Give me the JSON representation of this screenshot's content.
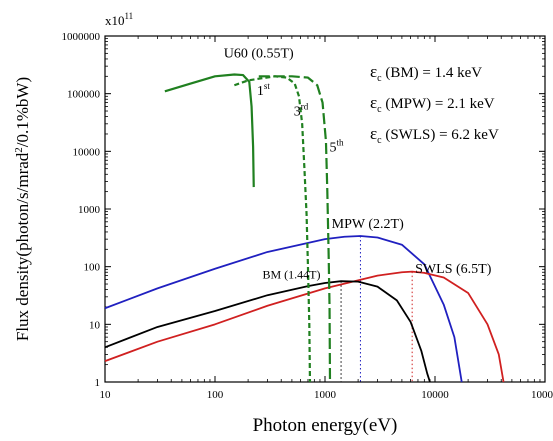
{
  "chart_data": {
    "type": "line",
    "xlabel": "Photon energy(eV)",
    "ylabel_parts": {
      "pre": "Flux density(photon/s/mrad",
      "sup": "2",
      "post": "/0.1%bW)"
    },
    "y_multiplier": {
      "base": "x10",
      "exp": "11"
    },
    "x_scale": "log",
    "y_scale": "log",
    "xlim": [
      10,
      100000
    ],
    "ylim": [
      1,
      1000000
    ],
    "x_ticks": [
      10,
      100,
      1000,
      10000,
      100000
    ],
    "x_tick_labels": [
      "10",
      "100",
      "1000",
      "10000",
      "100000"
    ],
    "y_ticks": [
      1,
      10,
      100,
      1000,
      10000,
      100000,
      1000000
    ],
    "y_tick_labels": [
      "1",
      "10",
      "100",
      "1000",
      "10000",
      "100000",
      "1000000"
    ],
    "critical_energies": [
      {
        "sym": "ε",
        "sub": "c",
        "text": " (BM) = 1.4 keV"
      },
      {
        "sym": "ε",
        "sub": "c",
        "text": " (MPW) = 2.1 keV"
      },
      {
        "sym": "ε",
        "sub": "c",
        "text": " (SWLS) = 6.2 keV"
      }
    ],
    "series": [
      {
        "name": "MPW (2.2T)",
        "color": "#2020c0",
        "dash": "solid",
        "points": [
          [
            10,
            19
          ],
          [
            30,
            42
          ],
          [
            100,
            92
          ],
          [
            300,
            180
          ],
          [
            1000,
            300
          ],
          [
            1500,
            330
          ],
          [
            2100,
            340
          ],
          [
            3000,
            320
          ],
          [
            5000,
            240
          ],
          [
            8000,
            110
          ],
          [
            12000,
            22
          ],
          [
            15000,
            6
          ],
          [
            17500,
            1
          ]
        ]
      },
      {
        "name": "SWLS (6.5T)",
        "color": "#d02020",
        "dash": "solid",
        "points": [
          [
            10,
            2.3
          ],
          [
            30,
            5
          ],
          [
            100,
            10
          ],
          [
            300,
            21
          ],
          [
            1000,
            42
          ],
          [
            3000,
            70
          ],
          [
            5000,
            80
          ],
          [
            6200,
            82
          ],
          [
            8000,
            78
          ],
          [
            12000,
            65
          ],
          [
            20000,
            35
          ],
          [
            30000,
            10
          ],
          [
            38000,
            3
          ],
          [
            42000,
            1
          ]
        ]
      },
      {
        "name": "BM (1.44T)",
        "color": "#000000",
        "dash": "solid",
        "points": [
          [
            10,
            4
          ],
          [
            30,
            9
          ],
          [
            100,
            17
          ],
          [
            300,
            32
          ],
          [
            700,
            46
          ],
          [
            1000,
            52
          ],
          [
            1400,
            56
          ],
          [
            2000,
            55
          ],
          [
            3000,
            45
          ],
          [
            4500,
            26
          ],
          [
            6000,
            11
          ],
          [
            7500,
            3.5
          ],
          [
            8500,
            1.4
          ],
          [
            9000,
            1
          ]
        ]
      },
      {
        "name": "1st",
        "color": "#208020",
        "dash": "solid",
        "points": [
          [
            35,
            110000
          ],
          [
            60,
            150000
          ],
          [
            100,
            200000
          ],
          [
            150,
            215000
          ],
          [
            180,
            210000
          ],
          [
            205,
            160000
          ],
          [
            215,
            60000
          ],
          [
            222,
            12000
          ],
          [
            225,
            2400
          ]
        ]
      },
      {
        "name": "3rd",
        "color": "#208020",
        "dash": "short",
        "points": [
          [
            150,
            140000
          ],
          [
            200,
            170000
          ],
          [
            350,
            200000
          ],
          [
            450,
            190000
          ],
          [
            530,
            150000
          ],
          [
            580,
            90000
          ],
          [
            620,
            30000
          ],
          [
            650,
            5000
          ],
          [
            680,
            800
          ],
          [
            700,
            100
          ],
          [
            720,
            10
          ],
          [
            730,
            1
          ]
        ]
      },
      {
        "name": "5th",
        "color": "#208020",
        "dash": "long",
        "points": [
          [
            250,
            200000
          ],
          [
            500,
            200000
          ],
          [
            700,
            190000
          ],
          [
            850,
            140000
          ],
          [
            950,
            70000
          ],
          [
            1020,
            15000
          ],
          [
            1050,
            2000
          ],
          [
            1080,
            150
          ],
          [
            1100,
            20
          ],
          [
            1110,
            1
          ]
        ]
      }
    ],
    "vertical_markers": [
      {
        "x": 1400,
        "top": 56,
        "color": "#000000"
      },
      {
        "x": 2100,
        "top": 340,
        "color": "#2020c0"
      },
      {
        "x": 6200,
        "top": 82,
        "color": "#d02020"
      }
    ],
    "labels": [
      {
        "text": "U60 (0.55T)",
        "color": "#208020",
        "x": 120,
        "y": 420000
      },
      {
        "text": "MPW (2.2T)",
        "color": "#2020c0",
        "x": 1150,
        "y": 470
      },
      {
        "text": "SWLS (6.5T)",
        "color": "#d02020",
        "x": 6600,
        "y": 78
      },
      {
        "text": "BM (1.44T)",
        "color": "#000000",
        "x": 270,
        "y": 62
      }
    ],
    "harmonic_labels": [
      {
        "base": "1",
        "sup": "st",
        "x": 240,
        "y": 95000
      },
      {
        "base": "3",
        "sup": "rd",
        "x": 520,
        "y": 42000
      },
      {
        "base": "5",
        "sup": "th",
        "x": 1100,
        "y": 10000
      }
    ]
  }
}
